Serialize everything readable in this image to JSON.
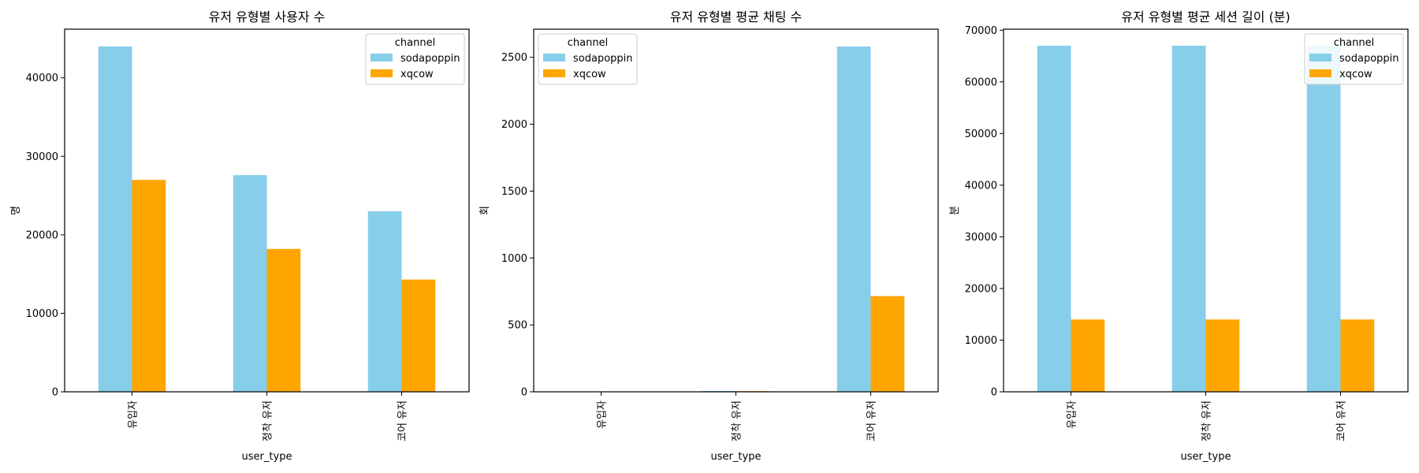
{
  "colors": {
    "sodapoppin": "#87CEEB",
    "xqcow": "#FFA500"
  },
  "chart_data": [
    {
      "type": "bar",
      "title": "유저 유형별 사용자 수",
      "xlabel": "user_type",
      "ylabel": "명",
      "categories": [
        "유입자",
        "정착 유저",
        "코어 유저"
      ],
      "ylim": [
        0,
        46200
      ],
      "yticks": [
        0,
        10000,
        20000,
        30000,
        40000
      ],
      "legend": {
        "title": "channel",
        "placement": "top-right"
      },
      "series": [
        {
          "name": "sodapoppin",
          "values": [
            44000,
            27600,
            23000
          ]
        },
        {
          "name": "xqcow",
          "values": [
            27000,
            18200,
            14300
          ]
        }
      ]
    },
    {
      "type": "bar",
      "title": "유저 유형별 평균 채팅 수",
      "xlabel": "user_type",
      "ylabel": "회",
      "categories": [
        "유입자",
        "정착 유저",
        "코어 유저"
      ],
      "ylim": [
        0,
        2710
      ],
      "yticks": [
        0,
        500,
        1000,
        1500,
        2000,
        2500
      ],
      "legend": {
        "title": "channel",
        "placement": "top-left"
      },
      "series": [
        {
          "name": "sodapoppin",
          "values": [
            1,
            6,
            2580
          ]
        },
        {
          "name": "xqcow",
          "values": [
            1,
            5,
            715
          ]
        }
      ]
    },
    {
      "type": "bar",
      "title": "유저 유형별 평균 세션 길이 (분)",
      "xlabel": "user_type",
      "ylabel": "분",
      "categories": [
        "유입자",
        "정착 유저",
        "코어 유저"
      ],
      "ylim": [
        0,
        70200
      ],
      "yticks": [
        0,
        10000,
        20000,
        30000,
        40000,
        50000,
        60000,
        70000
      ],
      "legend": {
        "title": "channel",
        "placement": "top-right"
      },
      "series": [
        {
          "name": "sodapoppin",
          "values": [
            67000,
            67000,
            67000
          ]
        },
        {
          "name": "xqcow",
          "values": [
            14000,
            14000,
            14000
          ]
        }
      ]
    }
  ]
}
